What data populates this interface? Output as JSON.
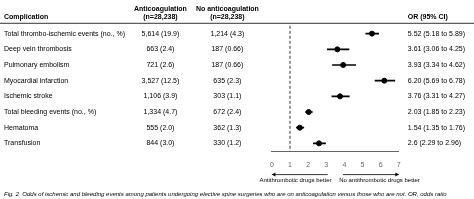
{
  "chart_data": {
    "type": "forest",
    "categories": [
      "Total thrombo-ischemic events (no., %)",
      "Deep vein thrombosis",
      "Pulmonary embolism",
      "Myocardial infarction",
      "Ischemic stroke",
      "Total bleeding events (no., %)",
      "Hematoma",
      "Transfusion"
    ],
    "series": [
      {
        "values": [
          5.52,
          3.61,
          3.93,
          6.2,
          3.76,
          2.03,
          1.54,
          2.6
        ],
        "ci_low": [
          5.18,
          3.06,
          3.34,
          5.69,
          3.31,
          1.85,
          1.35,
          2.29
        ],
        "ci_high": [
          5.89,
          4.25,
          4.62,
          6.78,
          4.27,
          2.23,
          1.76,
          2.96
        ],
        "color": "#000000",
        "marker": "circle"
      }
    ],
    "category_header": "Complication",
    "left_columns": [
      {
        "header": "Anticoagulation\n(n=28,238)",
        "values": [
          "5,614 (19.9)",
          "663 (2.4)",
          "721 (2.6)",
          "3,527 (12.5)",
          "1,106 (3.9)",
          "1,334 (4.7)",
          "555 (2.0)",
          "844 (3.0)"
        ]
      },
      {
        "header": "No anticoagulation\n(n=28,238)",
        "values": [
          "1,214 (4.3)",
          "187 (0.66)",
          "187 (0.66)",
          "635 (2.3)",
          "303 (1.1)",
          "672 (2.4)",
          "362 (1.3)",
          "330 (1.2)"
        ]
      }
    ],
    "right_columns": [
      {
        "header": "OR (95% CI)",
        "values": [
          "5.52 (5.18 to 5.89)",
          "3.61 (3.06 to 4.25)",
          "3.93 (3.34 to 4.62)",
          "6.20 (5.69 to 6.78)",
          "3.76 (3.31 to 4.27)",
          "2.03 (1.85 to 2.23)",
          "1.54 (1.35 to 1.76)",
          "2.6 (2.29 to 2.96)"
        ]
      }
    ],
    "reference_line": {
      "x": 1,
      "line_style": "dashed"
    },
    "annotations": [
      {
        "text": "Antithrombotic drugs better",
        "direction": "left"
      },
      {
        "text": "No antithrombotic drugs better",
        "direction": "right"
      }
    ],
    "caption": "Fig. 2  Odds of ischemic and bleeding events among patients undergoing elective spine surgeries who are on anticoagulation versus those who are not. OR, odds ratio",
    "xlim": [
      0,
      7
    ],
    "xticks": [
      0,
      1,
      2,
      3,
      4,
      5,
      6,
      7
    ],
    "grid": false,
    "tick_labels": "x"
  }
}
